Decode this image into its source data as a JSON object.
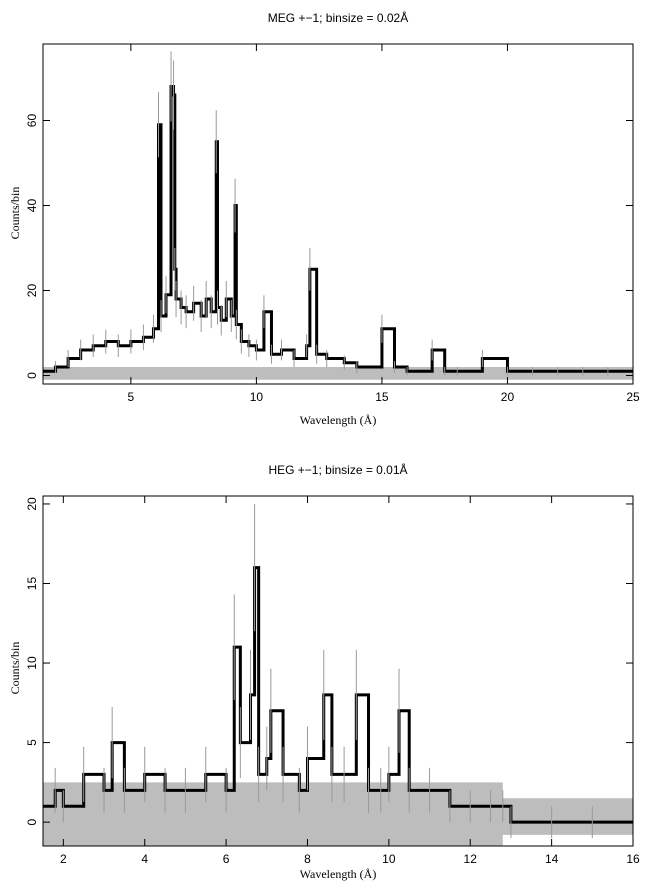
{
  "chart_data": [
    {
      "type": "line",
      "title": "MEG +−1; binsize = 0.02Å",
      "xlabel": "Wavelength (Å)",
      "ylabel": "Counts/bin",
      "xlim": [
        1.5,
        25
      ],
      "ylim": [
        -2,
        78
      ],
      "xticks": [
        5,
        10,
        15,
        20,
        25
      ],
      "yticks": [
        0,
        20,
        40,
        60
      ],
      "grid": false,
      "series": [
        {
          "style": "histogram",
          "x": [
            1.5,
            2.0,
            2.5,
            3.0,
            3.5,
            4.0,
            4.5,
            5.0,
            5.5,
            5.9,
            6.1,
            6.2,
            6.4,
            6.6,
            6.7,
            6.75,
            6.8,
            7.0,
            7.2,
            7.5,
            7.8,
            8.0,
            8.2,
            8.4,
            8.45,
            8.6,
            8.8,
            9.0,
            9.15,
            9.2,
            9.4,
            9.7,
            10.0,
            10.3,
            10.6,
            11.0,
            11.5,
            12.0,
            12.13,
            12.4,
            12.8,
            13.5,
            14.0,
            15.0,
            15.5,
            16.0,
            17.0,
            17.5,
            18.0,
            19.0,
            20.0,
            21.0,
            22.0,
            23.0,
            24.0,
            25.0
          ],
          "y": [
            1,
            2,
            4,
            6,
            7,
            8,
            7,
            8,
            9,
            11,
            59,
            14,
            19,
            68,
            66,
            25,
            18,
            16,
            15,
            17,
            14,
            18,
            15,
            55,
            16,
            13,
            18,
            14,
            40,
            12,
            8,
            7,
            6,
            15,
            5,
            6,
            4,
            7,
            25,
            5,
            4,
            3,
            2,
            11,
            2,
            1,
            6,
            1,
            1,
            4,
            1,
            1,
            1,
            1,
            1,
            1
          ]
        },
        {
          "style": "uncertainty-band",
          "x": [
            1.5,
            25
          ],
          "y_low": [
            -1,
            -1
          ],
          "y_high": [
            2,
            2
          ]
        }
      ]
    },
    {
      "type": "line",
      "title": "HEG +−1; binsize = 0.01Å",
      "xlabel": "Wavelength (Å)",
      "ylabel": "Counts/bin",
      "xlim": [
        1.5,
        16
      ],
      "ylim": [
        -1.5,
        20.5
      ],
      "xticks": [
        2,
        4,
        6,
        8,
        10,
        12,
        14,
        16
      ],
      "yticks": [
        0,
        5,
        10,
        15,
        20
      ],
      "grid": false,
      "series": [
        {
          "style": "histogram",
          "x": [
            1.5,
            1.8,
            2.0,
            2.5,
            3.0,
            3.2,
            3.5,
            4.0,
            4.5,
            5.0,
            5.5,
            6.0,
            6.2,
            6.35,
            6.6,
            6.7,
            6.8,
            7.0,
            7.1,
            7.4,
            7.8,
            8.0,
            8.4,
            8.6,
            8.9,
            9.2,
            9.5,
            9.8,
            10.0,
            10.25,
            10.5,
            11.0,
            11.5,
            12.0,
            12.5,
            12.8,
            13.0,
            14.0,
            15.0,
            16.0
          ],
          "y": [
            1,
            2,
            1,
            3,
            2,
            5,
            2,
            3,
            2,
            2,
            3,
            2,
            11,
            5,
            8,
            16,
            3,
            4,
            7,
            3,
            2,
            4,
            8,
            3,
            3,
            8,
            2,
            2,
            3,
            7,
            2,
            2,
            1,
            1,
            1,
            1,
            0,
            0,
            0,
            0
          ]
        },
        {
          "style": "uncertainty-band",
          "x": [
            1.5,
            12.8,
            12.8,
            16
          ],
          "y_low": [
            -1.5,
            -1.5,
            -0.8,
            -0.8
          ],
          "y_high": [
            2.5,
            2.5,
            1.5,
            1.5
          ]
        }
      ]
    }
  ]
}
